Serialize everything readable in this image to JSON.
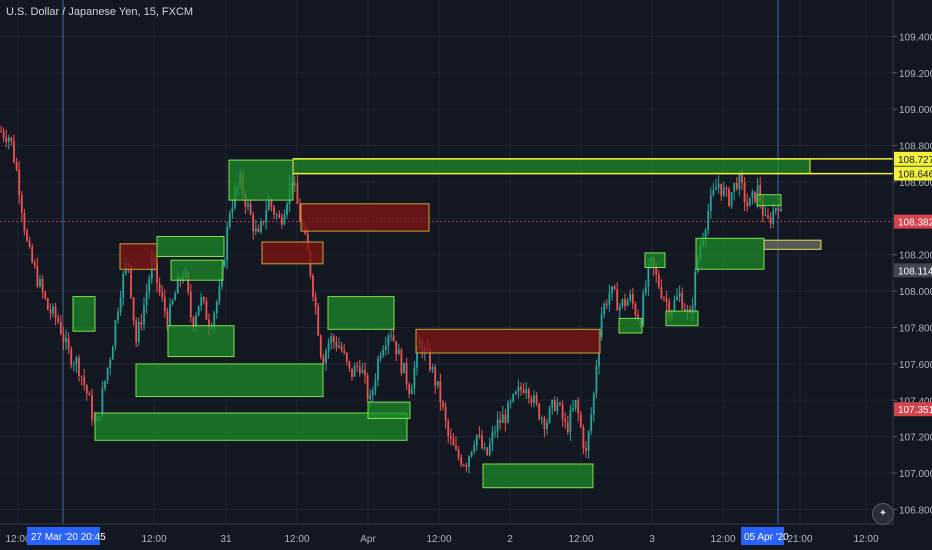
{
  "chart_data": {
    "type": "candlestick",
    "title": "U.S. Dollar / Japanese Yen, 15, FXCM",
    "y_ticks": [
      106.8,
      107.0,
      107.2,
      107.4,
      107.6,
      107.8,
      108.0,
      108.2,
      108.4,
      108.6,
      108.8,
      109.0,
      109.2,
      109.4
    ],
    "y_tick_labels": [
      "106.800",
      "107.000",
      "107.200",
      "107.400",
      "107.600",
      "107.800",
      "108.000",
      "108.200",
      "108.400",
      "108.600",
      "108.800",
      "109.000",
      "109.200",
      "109.400"
    ],
    "ylim": [
      106.72,
      109.6
    ],
    "x_tick_labels": [
      "12:00",
      "12:00",
      "31",
      "12:00",
      "Apr",
      "12:00",
      "2",
      "12:00",
      "3",
      "12:00",
      "21:00",
      "12:00"
    ],
    "x_range_labels": [
      "27 Mar '20",
      "20:45",
      "05 Apr '20"
    ],
    "price_labels": [
      {
        "label": "108.727",
        "value": 108.727,
        "style": "yellow"
      },
      {
        "label": "108.646",
        "value": 108.646,
        "style": "yellow"
      },
      {
        "label": "108.382",
        "value": 108.382,
        "style": "red"
      },
      {
        "label": "108.114",
        "value": 108.114,
        "style": "gray"
      },
      {
        "label": "107.351",
        "value": 107.351,
        "style": "red"
      }
    ],
    "zones": [
      {
        "kind": "demand",
        "top": 107.97,
        "bottom": 107.78
      },
      {
        "kind": "demand",
        "top": 107.33,
        "bottom": 107.18
      },
      {
        "kind": "supply",
        "top": 108.26,
        "bottom": 108.12
      },
      {
        "kind": "demand",
        "top": 108.3,
        "bottom": 108.19
      },
      {
        "kind": "demand",
        "top": 108.17,
        "bottom": 108.06
      },
      {
        "kind": "demand",
        "top": 107.81,
        "bottom": 107.64
      },
      {
        "kind": "demand",
        "top": 107.6,
        "bottom": 107.42
      },
      {
        "kind": "demand",
        "top": 108.72,
        "bottom": 108.5
      },
      {
        "kind": "supply",
        "top": 108.48,
        "bottom": 108.33
      },
      {
        "kind": "supply",
        "top": 108.27,
        "bottom": 108.15
      },
      {
        "kind": "demand",
        "top": 107.97,
        "bottom": 107.79
      },
      {
        "kind": "demand",
        "top": 107.39,
        "bottom": 107.3
      },
      {
        "kind": "supply",
        "top": 107.79,
        "bottom": 107.66
      },
      {
        "kind": "demand",
        "top": 107.05,
        "bottom": 106.92
      },
      {
        "kind": "demand",
        "top": 107.85,
        "bottom": 107.77
      },
      {
        "kind": "demand",
        "top": 108.21,
        "bottom": 108.13
      },
      {
        "kind": "demand",
        "top": 107.89,
        "bottom": 107.81
      },
      {
        "kind": "demand",
        "top": 108.29,
        "bottom": 108.12
      },
      {
        "kind": "demand",
        "top": 108.53,
        "bottom": 108.47
      },
      {
        "kind": "neutral",
        "top": 108.28,
        "bottom": 108.23
      },
      {
        "kind": "key-level",
        "top": 108.727,
        "bottom": 108.646
      }
    ],
    "price_path": [
      [
        0,
        108.88
      ],
      [
        10,
        108.85
      ],
      [
        18,
        108.62
      ],
      [
        28,
        108.22
      ],
      [
        38,
        108.06
      ],
      [
        48,
        107.9
      ],
      [
        58,
        107.84
      ],
      [
        68,
        107.66
      ],
      [
        78,
        107.6
      ],
      [
        88,
        107.42
      ],
      [
        96,
        107.24
      ],
      [
        104,
        107.48
      ],
      [
        112,
        107.7
      ],
      [
        120,
        108.0
      ],
      [
        128,
        108.18
      ],
      [
        136,
        107.72
      ],
      [
        144,
        107.92
      ],
      [
        152,
        108.16
      ],
      [
        160,
        107.98
      ],
      [
        168,
        107.84
      ],
      [
        176,
        108.0
      ],
      [
        184,
        108.12
      ],
      [
        192,
        107.82
      ],
      [
        200,
        107.96
      ],
      [
        210,
        107.82
      ],
      [
        220,
        108.0
      ],
      [
        230,
        108.46
      ],
      [
        240,
        108.6
      ],
      [
        250,
        108.42
      ],
      [
        258,
        108.28
      ],
      [
        268,
        108.5
      ],
      [
        280,
        108.38
      ],
      [
        292,
        108.62
      ],
      [
        300,
        108.4
      ],
      [
        308,
        108.2
      ],
      [
        316,
        107.9
      ],
      [
        322,
        107.62
      ],
      [
        330,
        107.74
      ],
      [
        340,
        107.7
      ],
      [
        350,
        107.54
      ],
      [
        360,
        107.6
      ],
      [
        370,
        107.38
      ],
      [
        380,
        107.68
      ],
      [
        390,
        107.8
      ],
      [
        400,
        107.62
      ],
      [
        410,
        107.46
      ],
      [
        420,
        107.72
      ],
      [
        430,
        107.6
      ],
      [
        440,
        107.42
      ],
      [
        448,
        107.2
      ],
      [
        456,
        107.1
      ],
      [
        466,
        107.06
      ],
      [
        476,
        107.22
      ],
      [
        486,
        107.08
      ],
      [
        496,
        107.26
      ],
      [
        506,
        107.32
      ],
      [
        516,
        107.42
      ],
      [
        526,
        107.5
      ],
      [
        536,
        107.36
      ],
      [
        546,
        107.28
      ],
      [
        556,
        107.4
      ],
      [
        566,
        107.24
      ],
      [
        576,
        107.38
      ],
      [
        586,
        107.1
      ],
      [
        594,
        107.44
      ],
      [
        600,
        107.86
      ],
      [
        610,
        108.0
      ],
      [
        620,
        107.92
      ],
      [
        630,
        107.96
      ],
      [
        640,
        107.84
      ],
      [
        650,
        108.16
      ],
      [
        660,
        108.02
      ],
      [
        670,
        107.9
      ],
      [
        680,
        107.98
      ],
      [
        690,
        107.84
      ],
      [
        698,
        108.2
      ],
      [
        708,
        108.44
      ],
      [
        718,
        108.6
      ],
      [
        728,
        108.5
      ],
      [
        738,
        108.62
      ],
      [
        748,
        108.46
      ],
      [
        758,
        108.56
      ],
      [
        766,
        108.36
      ],
      [
        772,
        108.42
      ],
      [
        778,
        108.5
      ],
      [
        782,
        108.38
      ]
    ]
  }
}
